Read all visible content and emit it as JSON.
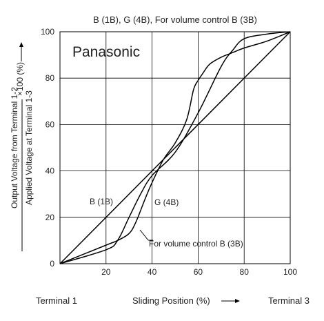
{
  "chart_data": {
    "type": "line",
    "title": "B (1B), G (4B), For volume control B (3B)",
    "brand": "Panasonic",
    "ylabel_line1": "Output Voltage from Terminal 1-2",
    "ylabel_line2": "Applied Voltage at Terminal 1-3",
    "ylabel_suffix": "×100 (%)",
    "xlabel": "Sliding Position (%)",
    "x_left_label": "Terminal 1",
    "x_right_label": "Terminal 3",
    "xlim": [
      0,
      100
    ],
    "ylim": [
      0,
      100
    ],
    "x_ticks": [
      20,
      40,
      60,
      80,
      100
    ],
    "y_ticks": [
      0,
      20,
      40,
      60,
      80,
      100
    ],
    "grid": true,
    "series": [
      {
        "name": "B (1B)",
        "x": [
          0,
          100
        ],
        "y": [
          0,
          100
        ]
      },
      {
        "name": "G (4B)",
        "x": [
          0,
          20,
          25,
          30,
          35,
          40,
          50,
          60,
          70,
          75,
          80,
          90,
          100
        ],
        "y": [
          0,
          6,
          10,
          20,
          30,
          38,
          48,
          65,
          85,
          92,
          97,
          99,
          100
        ]
      },
      {
        "name": "For volume control B (3B)",
        "x": [
          0,
          20,
          25,
          30,
          33,
          37,
          40,
          45,
          50,
          55,
          58,
          60,
          62,
          65,
          70,
          75,
          80,
          90,
          100
        ],
        "y": [
          0,
          8,
          10,
          13,
          18,
          28,
          35,
          45,
          52,
          62,
          75,
          79,
          82,
          86,
          89,
          91,
          93,
          96,
          100
        ]
      }
    ],
    "annotations": [
      {
        "text": "B (1B)"
      },
      {
        "text": "G (4B)"
      },
      {
        "text": "For volume control B (3B)"
      }
    ]
  }
}
